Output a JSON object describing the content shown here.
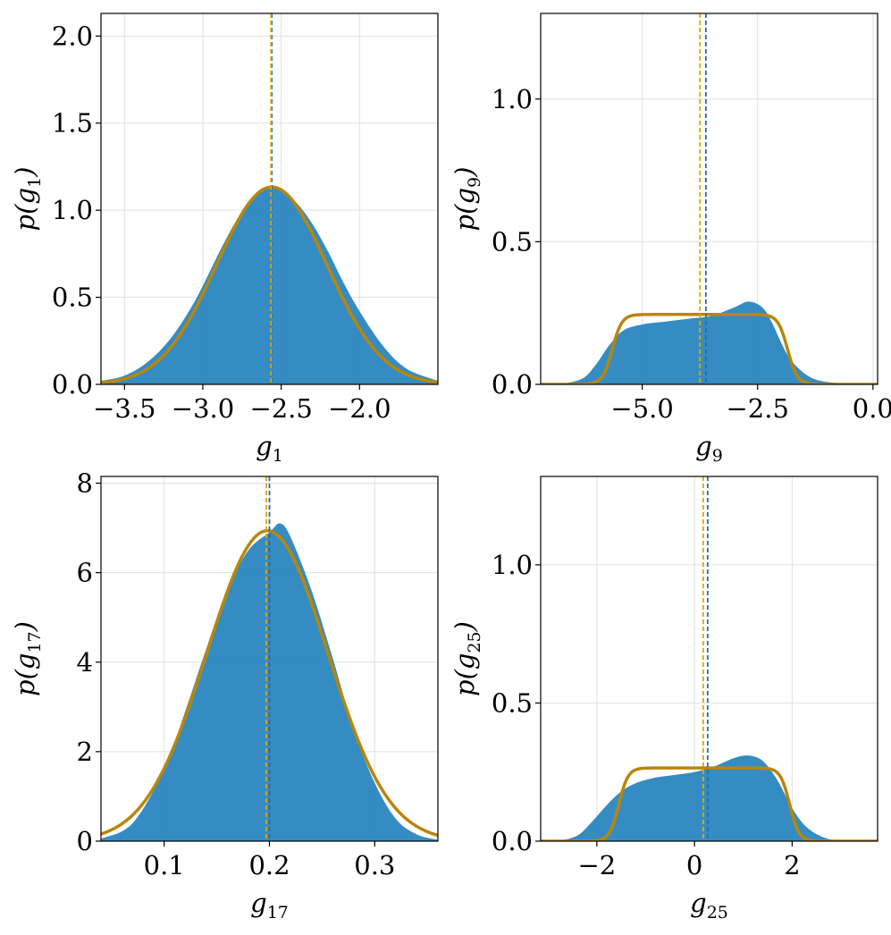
{
  "colors": {
    "fill": "#1f7fbd",
    "fit": "#b8860b",
    "fill_mean": "#1f6fb2",
    "fit_mean": "#e6a400",
    "grid": "#e0e0e0",
    "frame": "#000000"
  },
  "chart_data": [
    {
      "type": "area",
      "xlabel": {
        "base": "g",
        "sub": "1"
      },
      "ylabel": {
        "base": "p(g",
        "sub": "1",
        "close": ")"
      },
      "xlim": [
        -3.65,
        -1.5
      ],
      "ylim": [
        0,
        2.13
      ],
      "xticks": [
        -3.5,
        -3.0,
        -2.5,
        -2.0
      ],
      "xtick_labels": [
        "−3.5",
        "−3.0",
        "−2.5",
        "−2.0"
      ],
      "yticks": [
        0,
        0.5,
        1.0,
        1.5,
        2.0
      ],
      "ytick_labels": [
        "0.0",
        "0.5",
        "1.0",
        "1.5",
        "2.0"
      ],
      "density": {
        "x": [
          -3.65,
          -3.5,
          -3.35,
          -3.2,
          -3.05,
          -2.9,
          -2.8,
          -2.7,
          -2.6,
          -2.56,
          -2.5,
          -2.4,
          -2.3,
          -2.2,
          -2.1,
          -2.0,
          -1.85,
          -1.7,
          -1.5
        ],
        "y": [
          0.02,
          0.05,
          0.13,
          0.27,
          0.48,
          0.75,
          0.92,
          1.06,
          1.12,
          1.13,
          1.11,
          1.04,
          0.92,
          0.76,
          0.58,
          0.42,
          0.22,
          0.09,
          0.02
        ]
      },
      "fit": {
        "kind": "gaussian",
        "mean": -2.56,
        "sd": 0.352
      },
      "mean_lines": {
        "fill": -2.56,
        "fit": -2.565
      }
    },
    {
      "type": "area",
      "xlabel": {
        "base": "g",
        "sub": "9"
      },
      "ylabel": {
        "base": "p(g",
        "sub": "9",
        "close": ")"
      },
      "xlim": [
        -7.2,
        0.1
      ],
      "ylim": [
        0,
        1.3
      ],
      "xticks": [
        -5.0,
        -2.5,
        0.0
      ],
      "xtick_labels": [
        "−5.0",
        "−2.5",
        "0.0"
      ],
      "yticks": [
        0,
        0.5,
        1.0
      ],
      "ytick_labels": [
        "0.0",
        "0.5",
        "1.0"
      ],
      "density": {
        "x": [
          -6.8,
          -6.3,
          -6.0,
          -5.7,
          -5.4,
          -5.0,
          -4.5,
          -4.0,
          -3.5,
          -3.0,
          -2.7,
          -2.4,
          -2.2,
          -2.0,
          -1.8,
          -1.5,
          -1.2,
          -0.8,
          -0.5
        ],
        "y": [
          0.0,
          0.02,
          0.07,
          0.14,
          0.19,
          0.21,
          0.22,
          0.23,
          0.24,
          0.27,
          0.29,
          0.27,
          0.22,
          0.15,
          0.09,
          0.04,
          0.015,
          0.005,
          0.0
        ]
      },
      "fit": {
        "kind": "plateau",
        "center": -3.75,
        "half_width": 1.9,
        "height": 0.245,
        "edge": 0.42
      },
      "mean_lines": {
        "fill": -3.62,
        "fit": -3.75
      }
    },
    {
      "type": "area",
      "xlabel": {
        "base": "g",
        "sub": "17"
      },
      "ylabel": {
        "base": "p(g",
        "sub": "17",
        "close": ")"
      },
      "xlim": [
        0.04,
        0.36
      ],
      "ylim": [
        0,
        8.15
      ],
      "xticks": [
        0.1,
        0.2,
        0.3
      ],
      "xtick_labels": [
        "0.1",
        "0.2",
        "0.3"
      ],
      "yticks": [
        0,
        2,
        4,
        6,
        8
      ],
      "ytick_labels": [
        "0",
        "2",
        "4",
        "6",
        "8"
      ],
      "density": {
        "x": [
          0.04,
          0.07,
          0.1,
          0.12,
          0.14,
          0.16,
          0.18,
          0.2,
          0.21,
          0.22,
          0.24,
          0.26,
          0.28,
          0.3,
          0.32,
          0.34,
          0.36
        ],
        "y": [
          0.05,
          0.4,
          1.6,
          2.9,
          4.3,
          5.6,
          6.5,
          6.9,
          7.1,
          6.8,
          5.6,
          4.1,
          2.5,
          1.3,
          0.5,
          0.15,
          0.03
        ]
      },
      "fit": {
        "kind": "gaussian",
        "mean": 0.198,
        "sd": 0.0575
      },
      "mean_lines": {
        "fill": 0.2,
        "fit": 0.197
      }
    },
    {
      "type": "area",
      "xlabel": {
        "base": "g",
        "sub": "25"
      },
      "ylabel": {
        "base": "p(g",
        "sub": "25",
        "close": ")"
      },
      "xlim": [
        -3.15,
        3.75
      ],
      "ylim": [
        0,
        1.32
      ],
      "xticks": [
        -2,
        0,
        2
      ],
      "xtick_labels": [
        "−2",
        "0",
        "2"
      ],
      "yticks": [
        0,
        0.5,
        1.0
      ],
      "ytick_labels": [
        "0.0",
        "0.5",
        "1.0"
      ],
      "density": {
        "x": [
          -2.8,
          -2.4,
          -2.1,
          -1.8,
          -1.5,
          -1.2,
          -0.8,
          -0.4,
          0.0,
          0.4,
          0.8,
          1.1,
          1.4,
          1.7,
          2.0,
          2.3,
          2.7,
          3.2
        ],
        "y": [
          0.0,
          0.02,
          0.07,
          0.13,
          0.18,
          0.21,
          0.23,
          0.24,
          0.25,
          0.27,
          0.3,
          0.31,
          0.29,
          0.22,
          0.12,
          0.05,
          0.01,
          0.0
        ]
      },
      "fit": {
        "kind": "plateau",
        "center": 0.2,
        "half_width": 1.75,
        "height": 0.265,
        "edge": 0.38
      },
      "mean_lines": {
        "fill": 0.27,
        "fit": 0.18
      }
    }
  ]
}
